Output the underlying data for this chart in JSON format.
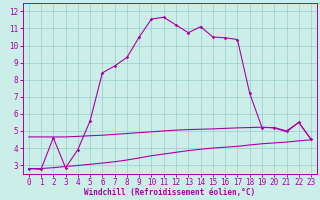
{
  "xlabel": "Windchill (Refroidissement éolien,°C)",
  "background_color": "#cceee8",
  "line_color": "#aa00aa",
  "grid_color": "#99cccc",
  "x_ticks": [
    0,
    1,
    2,
    3,
    4,
    5,
    6,
    7,
    8,
    9,
    10,
    11,
    12,
    13,
    14,
    15,
    16,
    17,
    18,
    19,
    20,
    21,
    22,
    23
  ],
  "y_ticks": [
    3,
    4,
    5,
    6,
    7,
    8,
    9,
    10,
    11,
    12
  ],
  "ylim": [
    2.5,
    12.5
  ],
  "xlim": [
    -0.5,
    23.5
  ],
  "line1_x": [
    0,
    1,
    2,
    3,
    4,
    5,
    6,
    7,
    8,
    9,
    10,
    11,
    12,
    13,
    14,
    15,
    16,
    17,
    18,
    19,
    20,
    21,
    22,
    23
  ],
  "line1_y": [
    2.8,
    2.75,
    4.6,
    2.85,
    3.9,
    5.6,
    8.4,
    8.8,
    9.3,
    10.5,
    11.55,
    11.65,
    11.2,
    10.75,
    11.1,
    10.5,
    10.45,
    10.35,
    7.2,
    5.2,
    5.2,
    5.0,
    5.5,
    4.5
  ],
  "line2_x": [
    0,
    1,
    2,
    3,
    4,
    5,
    6,
    7,
    8,
    9,
    10,
    11,
    12,
    13,
    14,
    15,
    16,
    17,
    18,
    19,
    20,
    21,
    22,
    23
  ],
  "line2_y": [
    4.65,
    4.65,
    4.65,
    4.65,
    4.68,
    4.72,
    4.75,
    4.8,
    4.85,
    4.9,
    4.95,
    5.0,
    5.05,
    5.08,
    5.1,
    5.12,
    5.15,
    5.18,
    5.2,
    5.22,
    5.18,
    4.95,
    5.5,
    4.5
  ],
  "line3_x": [
    0,
    1,
    2,
    3,
    4,
    5,
    6,
    7,
    8,
    9,
    10,
    11,
    12,
    13,
    14,
    15,
    16,
    17,
    18,
    19,
    20,
    21,
    22,
    23
  ],
  "line3_y": [
    2.8,
    2.8,
    2.85,
    2.92,
    2.98,
    3.05,
    3.12,
    3.2,
    3.3,
    3.42,
    3.55,
    3.65,
    3.75,
    3.85,
    3.93,
    4.0,
    4.05,
    4.1,
    4.18,
    4.25,
    4.3,
    4.35,
    4.42,
    4.48
  ],
  "tick_fontsize": 5.5,
  "xlabel_fontsize": 5.5
}
